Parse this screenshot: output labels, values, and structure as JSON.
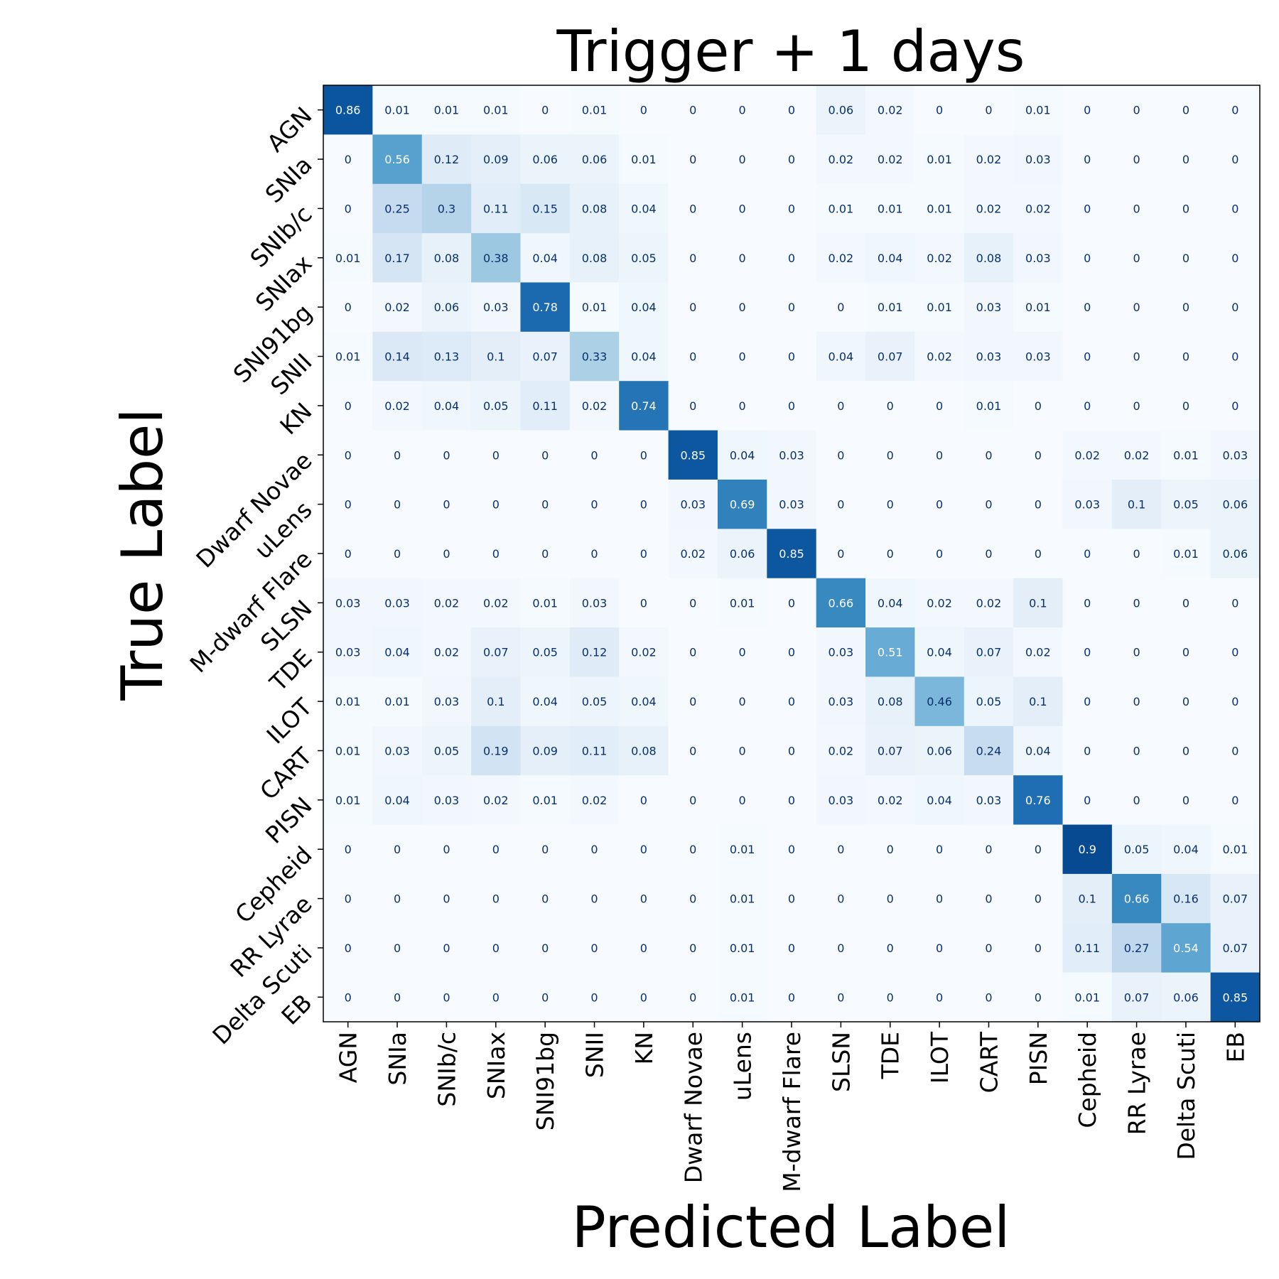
{
  "chart_data": {
    "type": "heatmap",
    "title": "Trigger + 1 days",
    "xlabel": "Predicted Label",
    "ylabel": "True Label",
    "colormap": "Blues",
    "vmin": 0,
    "vmax": 1,
    "x_categories": [
      "AGN",
      "SNIa",
      "SNIb/c",
      "SNIax",
      "SNI91bg",
      "SNII",
      "KN",
      "Dwarf Novae",
      "uLens",
      "M-dwarf Flare",
      "SLSN",
      "TDE",
      "ILOT",
      "CART",
      "PISN",
      "Cepheid",
      "RR Lyrae",
      "Delta Scuti",
      "EB"
    ],
    "y_categories": [
      "AGN",
      "SNIa",
      "SNIb/c",
      "SNIax",
      "SNI91bg",
      "SNII",
      "KN",
      "Dwarf Novae",
      "uLens",
      "M-dwarf Flare",
      "SLSN",
      "TDE",
      "ILOT",
      "CART",
      "PISN",
      "Cepheid",
      "RR Lyrae",
      "Delta Scuti",
      "EB"
    ],
    "values": [
      [
        0.86,
        0.01,
        0.01,
        0.01,
        0,
        0.01,
        0,
        0,
        0,
        0,
        0.06,
        0.02,
        0,
        0,
        0.01,
        0,
        0,
        0,
        0
      ],
      [
        0,
        0.56,
        0.12,
        0.09,
        0.06,
        0.06,
        0.01,
        0,
        0,
        0,
        0.02,
        0.02,
        0.01,
        0.02,
        0.03,
        0,
        0,
        0,
        0
      ],
      [
        0,
        0.25,
        0.3,
        0.11,
        0.15,
        0.08,
        0.04,
        0,
        0,
        0,
        0.01,
        0.01,
        0.01,
        0.02,
        0.02,
        0,
        0,
        0,
        0
      ],
      [
        0.01,
        0.17,
        0.08,
        0.38,
        0.04,
        0.08,
        0.05,
        0,
        0,
        0,
        0.02,
        0.04,
        0.02,
        0.08,
        0.03,
        0,
        0,
        0,
        0
      ],
      [
        0,
        0.02,
        0.06,
        0.03,
        0.78,
        0.01,
        0.04,
        0,
        0,
        0,
        0,
        0.01,
        0.01,
        0.03,
        0.01,
        0,
        0,
        0,
        0
      ],
      [
        0.01,
        0.14,
        0.13,
        0.1,
        0.07,
        0.33,
        0.04,
        0,
        0,
        0,
        0.04,
        0.07,
        0.02,
        0.03,
        0.03,
        0,
        0,
        0,
        0
      ],
      [
        0,
        0.02,
        0.04,
        0.05,
        0.11,
        0.02,
        0.74,
        0,
        0,
        0,
        0,
        0,
        0,
        0.01,
        0,
        0,
        0,
        0,
        0
      ],
      [
        0,
        0,
        0,
        0,
        0,
        0,
        0,
        0.85,
        0.04,
        0.03,
        0,
        0,
        0,
        0,
        0,
        0.02,
        0.02,
        0.01,
        0.03
      ],
      [
        0,
        0,
        0,
        0,
        0,
        0,
        0,
        0.03,
        0.69,
        0.03,
        0,
        0,
        0,
        0,
        0,
        0.03,
        0.1,
        0.05,
        0.06
      ],
      [
        0,
        0,
        0,
        0,
        0,
        0,
        0,
        0.02,
        0.06,
        0.85,
        0,
        0,
        0,
        0,
        0,
        0,
        0,
        0.01,
        0.06
      ],
      [
        0.03,
        0.03,
        0.02,
        0.02,
        0.01,
        0.03,
        0,
        0,
        0.01,
        0,
        0.66,
        0.04,
        0.02,
        0.02,
        0.1,
        0,
        0,
        0,
        0
      ],
      [
        0.03,
        0.04,
        0.02,
        0.07,
        0.05,
        0.12,
        0.02,
        0,
        0,
        0,
        0.03,
        0.51,
        0.04,
        0.07,
        0.02,
        0,
        0,
        0,
        0
      ],
      [
        0.01,
        0.01,
        0.03,
        0.1,
        0.04,
        0.05,
        0.04,
        0,
        0,
        0,
        0.03,
        0.08,
        0.46,
        0.05,
        0.1,
        0,
        0,
        0,
        0
      ],
      [
        0.01,
        0.03,
        0.05,
        0.19,
        0.09,
        0.11,
        0.08,
        0,
        0,
        0,
        0.02,
        0.07,
        0.06,
        0.24,
        0.04,
        0,
        0,
        0,
        0
      ],
      [
        0.01,
        0.04,
        0.03,
        0.02,
        0.01,
        0.02,
        0,
        0,
        0,
        0,
        0.03,
        0.02,
        0.04,
        0.03,
        0.76,
        0,
        0,
        0,
        0
      ],
      [
        0,
        0,
        0,
        0,
        0,
        0,
        0,
        0,
        0.01,
        0,
        0,
        0,
        0,
        0,
        0,
        0.9,
        0.05,
        0.04,
        0.01
      ],
      [
        0,
        0,
        0,
        0,
        0,
        0,
        0,
        0,
        0.01,
        0,
        0,
        0,
        0,
        0,
        0,
        0.1,
        0.66,
        0.16,
        0.07
      ],
      [
        0,
        0,
        0,
        0,
        0,
        0,
        0,
        0,
        0.01,
        0,
        0,
        0,
        0,
        0,
        0,
        0.11,
        0.27,
        0.54,
        0.07
      ],
      [
        0,
        0,
        0,
        0,
        0,
        0,
        0,
        0,
        0.01,
        0,
        0,
        0,
        0,
        0,
        0,
        0.01,
        0.07,
        0.06,
        0.85
      ]
    ]
  }
}
